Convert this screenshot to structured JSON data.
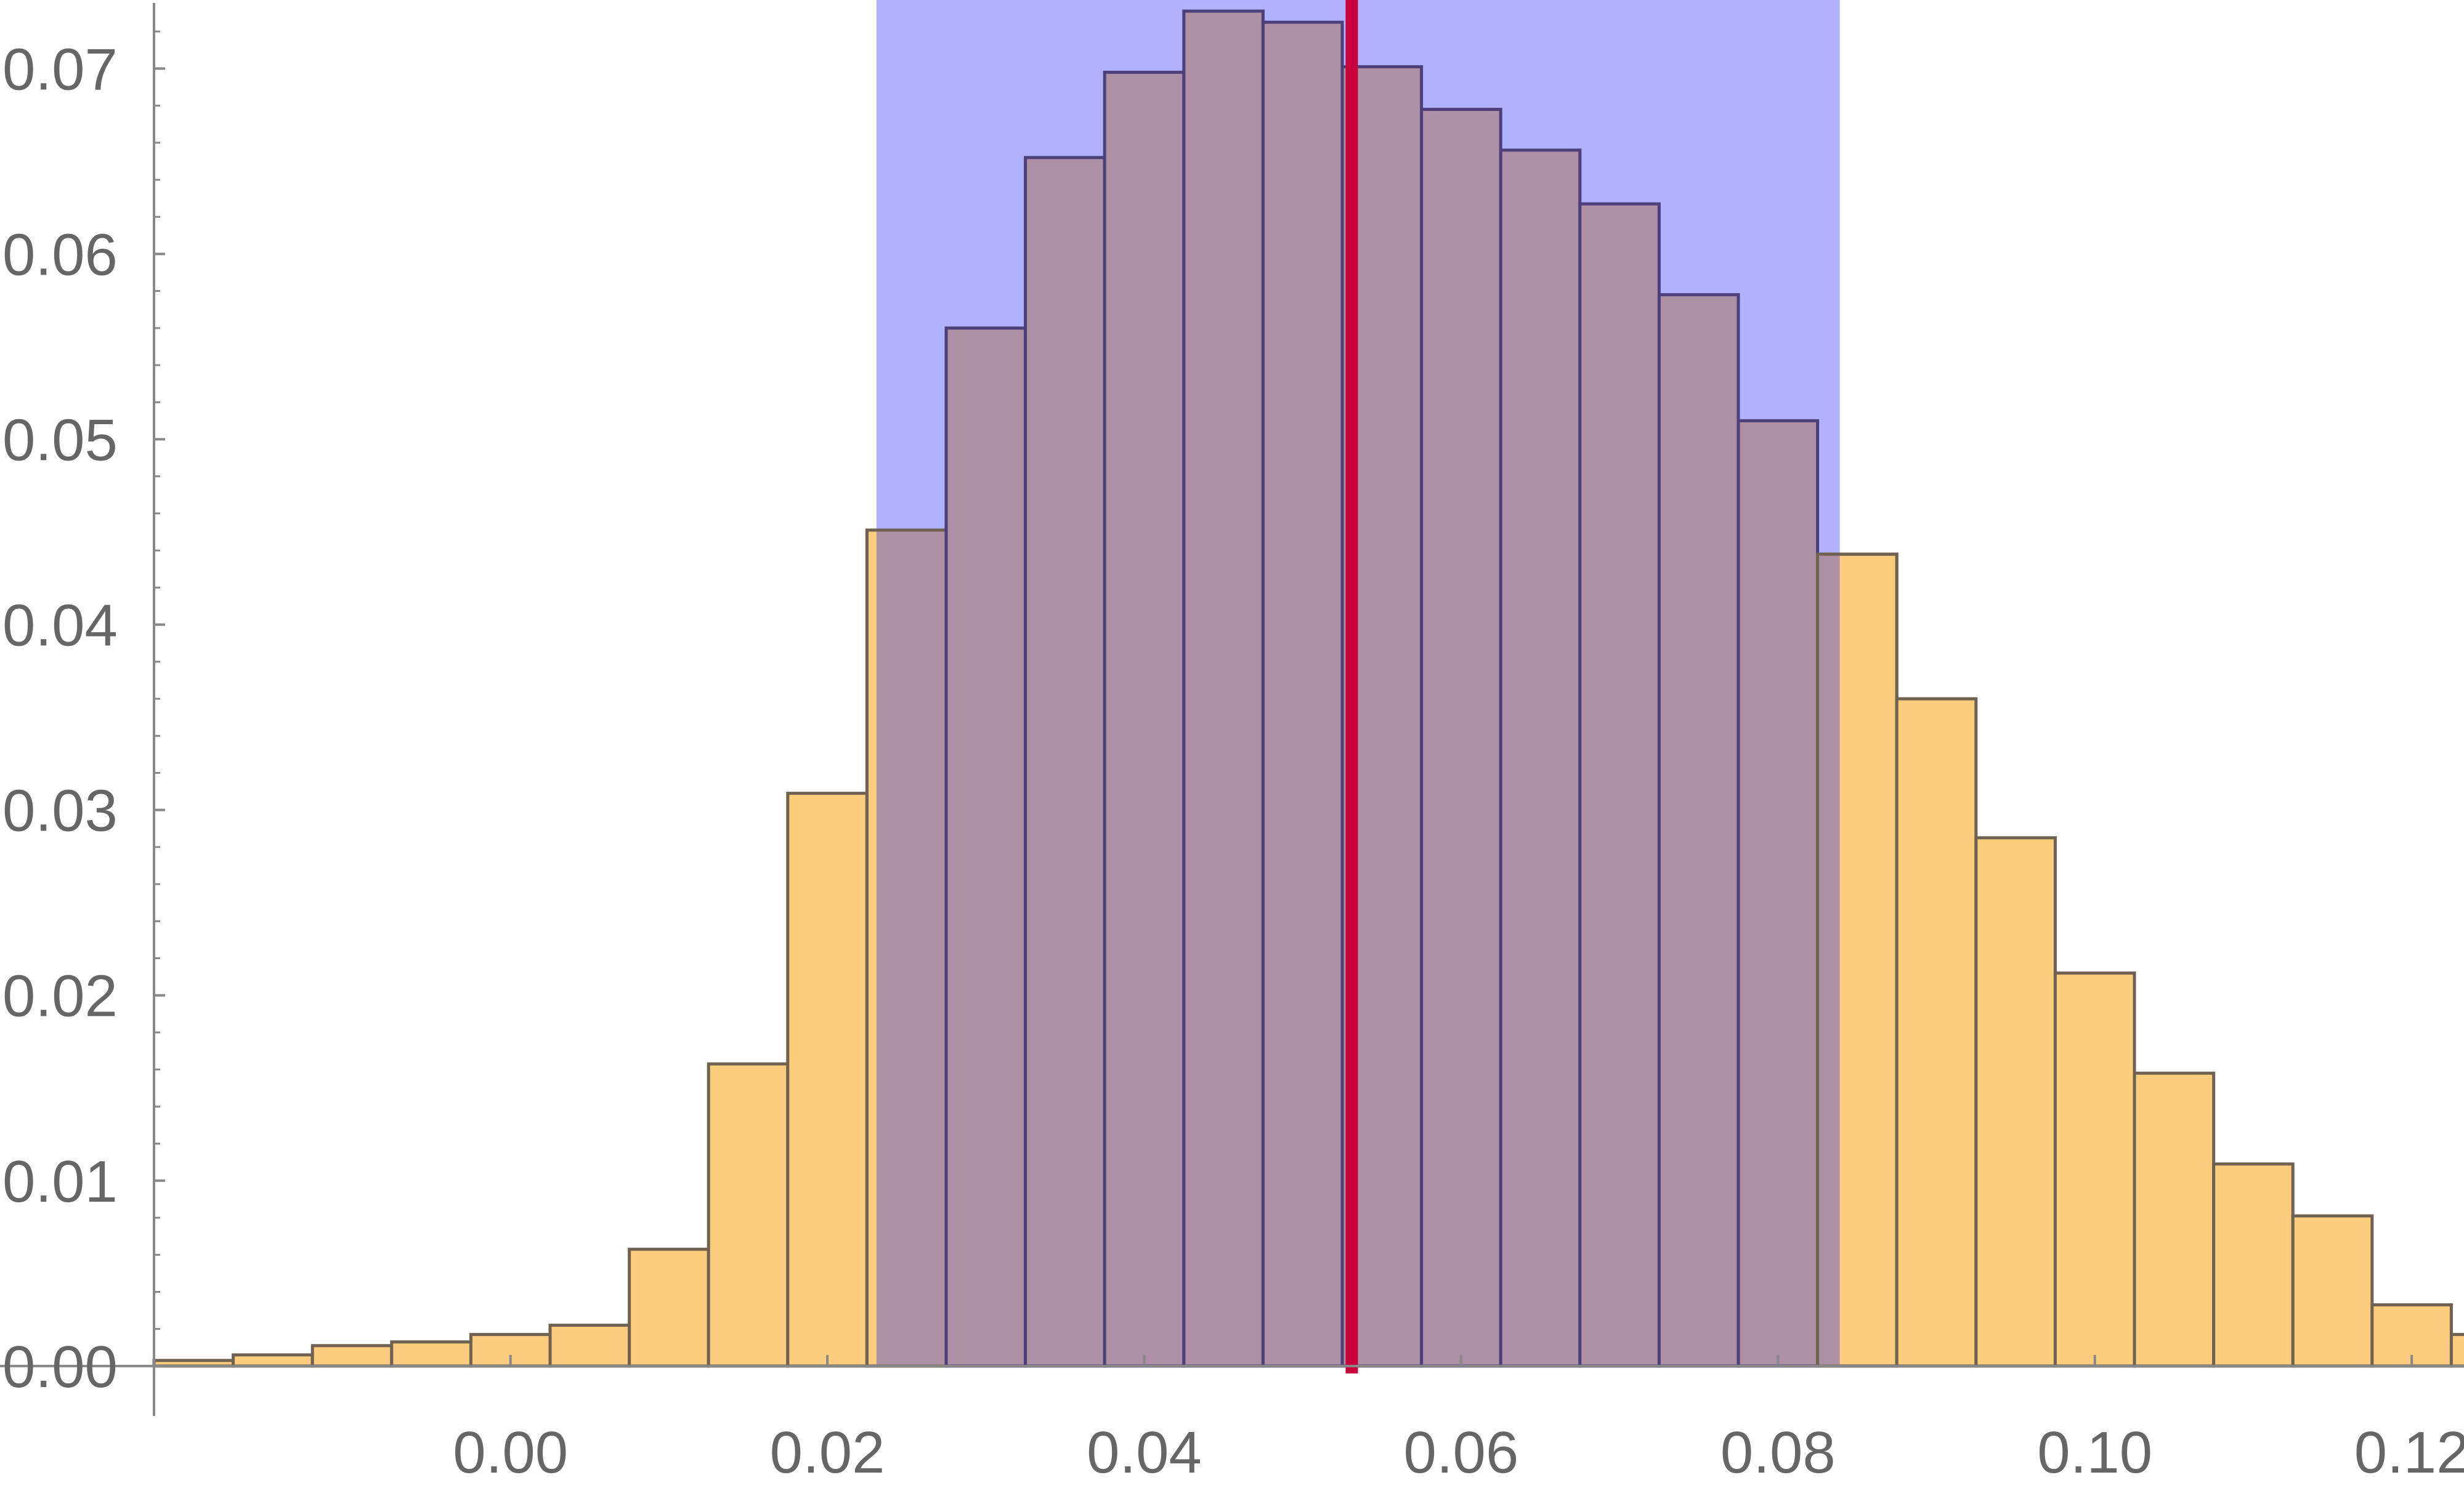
{
  "chart_data": {
    "type": "bar",
    "title": "",
    "xlabel": "",
    "ylabel": "",
    "bin_width": 0.005,
    "bin_start": -0.0225,
    "values": [
      0.0003,
      0.0006,
      0.0011,
      0.0013,
      0.0017,
      0.0022,
      0.0063,
      0.0163,
      0.0309,
      0.0451,
      0.056,
      0.0652,
      0.0698,
      0.0731,
      0.0725,
      0.0701,
      0.0678,
      0.0656,
      0.0627,
      0.0578,
      0.051,
      0.0438,
      0.036,
      0.0285,
      0.0212,
      0.0158,
      0.0109,
      0.0081,
      0.0033,
      0.0017
    ],
    "xlim": [
      -0.0225,
      0.1233
    ],
    "ylim": [
      -0.0013,
      0.0737
    ],
    "x_ticks": [
      "0.00",
      "0.02",
      "0.04",
      "0.06",
      "0.08",
      "0.10",
      "0.12"
    ],
    "y_ticks": [
      "0.00",
      "0.01",
      "0.02",
      "0.03",
      "0.04",
      "0.05",
      "0.06",
      "0.07"
    ],
    "shaded_interval": [
      0.0231,
      0.0839
    ],
    "reference_line_x": 0.0531,
    "grid": false,
    "colors": {
      "bar_fill": "#fbcd7c",
      "bar_stroke": "#6f6253",
      "bar_stroke_in_interval": "#4d3f7a",
      "interval_fill": "#b1b1fd",
      "bar_in_interval_fill": "#ad90a6",
      "reference_line": "#c8003b",
      "axis": "#888888",
      "tick_label": "#666666"
    }
  }
}
